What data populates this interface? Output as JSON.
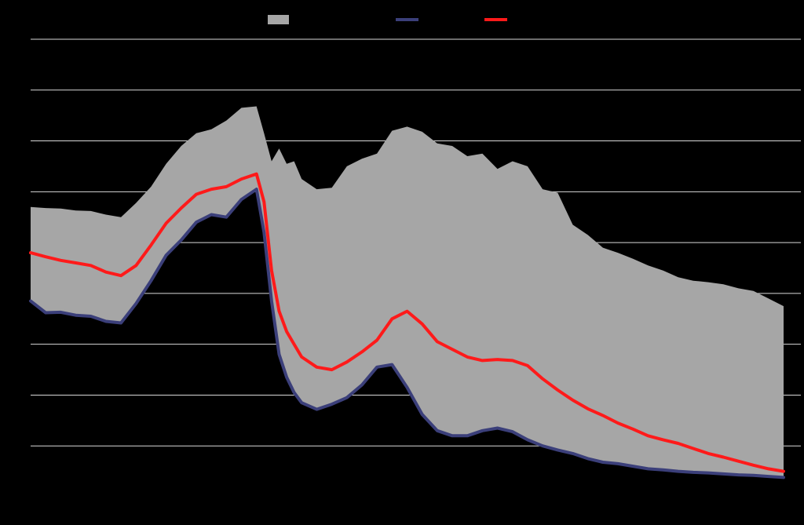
{
  "chart_data": {
    "type": "area",
    "title": "",
    "xlabel": "",
    "ylabel": "",
    "x_range": [
      0,
      100
    ],
    "ylim": [
      0,
      9
    ],
    "grid": true,
    "legend_position": "top-center",
    "colors": {
      "background": "#000000",
      "band": "#a6a6a6",
      "low_line": "#3b3f7a",
      "mid_line": "#ff1a1a",
      "grid": "#d9d9d9"
    },
    "legend": [
      {
        "key": "band",
        "label": "",
        "symbol": "box"
      },
      {
        "key": "low",
        "label": "",
        "symbol": "line"
      },
      {
        "key": "mid",
        "label": "",
        "symbol": "line"
      }
    ],
    "x": [
      0,
      2,
      4,
      6,
      8,
      10,
      12,
      14,
      16,
      18,
      20,
      22,
      24,
      26,
      28,
      30,
      31,
      32,
      33,
      34,
      35,
      36,
      38,
      40,
      42,
      44,
      46,
      48,
      50,
      52,
      54,
      56,
      58,
      60,
      62,
      64,
      66,
      68,
      70,
      72,
      74,
      76,
      78,
      80,
      82,
      84,
      86,
      88,
      90,
      92,
      94,
      96,
      98,
      100
    ],
    "series": [
      {
        "key": "band",
        "upper": [
          5.7,
          5.68,
          5.67,
          5.63,
          5.62,
          5.55,
          5.5,
          5.78,
          6.1,
          6.55,
          6.9,
          7.15,
          7.23,
          7.4,
          7.65,
          7.68,
          7.15,
          6.6,
          6.85,
          6.55,
          6.6,
          6.25,
          6.05,
          6.08,
          6.5,
          6.65,
          6.75,
          7.2,
          7.28,
          7.18,
          6.95,
          6.9,
          6.7,
          6.75,
          6.45,
          6.6,
          6.5,
          6.05,
          5.98,
          5.35,
          5.15,
          4.9,
          4.8,
          4.68,
          4.55,
          4.45,
          4.32,
          4.25,
          4.22,
          4.18,
          4.1,
          4.05,
          3.9,
          3.75
        ]
      },
      {
        "key": "low",
        "values": [
          3.85,
          3.62,
          3.63,
          3.57,
          3.55,
          3.45,
          3.42,
          3.8,
          4.25,
          4.75,
          5.05,
          5.4,
          5.55,
          5.5,
          5.85,
          6.05,
          5.2,
          3.85,
          2.8,
          2.35,
          2.05,
          1.85,
          1.72,
          1.82,
          1.95,
          2.2,
          2.55,
          2.6,
          2.15,
          1.62,
          1.3,
          1.2,
          1.2,
          1.3,
          1.35,
          1.28,
          1.12,
          1.0,
          0.92,
          0.85,
          0.75,
          0.68,
          0.65,
          0.6,
          0.55,
          0.53,
          0.5,
          0.48,
          0.47,
          0.45,
          0.43,
          0.42,
          0.4,
          0.38
        ]
      },
      {
        "key": "mid",
        "values": [
          4.8,
          4.72,
          4.65,
          4.6,
          4.55,
          4.42,
          4.35,
          4.55,
          4.95,
          5.38,
          5.68,
          5.95,
          6.05,
          6.1,
          6.25,
          6.35,
          5.8,
          4.45,
          3.65,
          3.25,
          3.0,
          2.75,
          2.55,
          2.5,
          2.65,
          2.85,
          3.08,
          3.5,
          3.65,
          3.4,
          3.05,
          2.9,
          2.75,
          2.68,
          2.7,
          2.68,
          2.58,
          2.32,
          2.1,
          1.9,
          1.73,
          1.6,
          1.45,
          1.33,
          1.2,
          1.12,
          1.05,
          0.95,
          0.85,
          0.78,
          0.7,
          0.62,
          0.55,
          0.5
        ]
      }
    ]
  }
}
